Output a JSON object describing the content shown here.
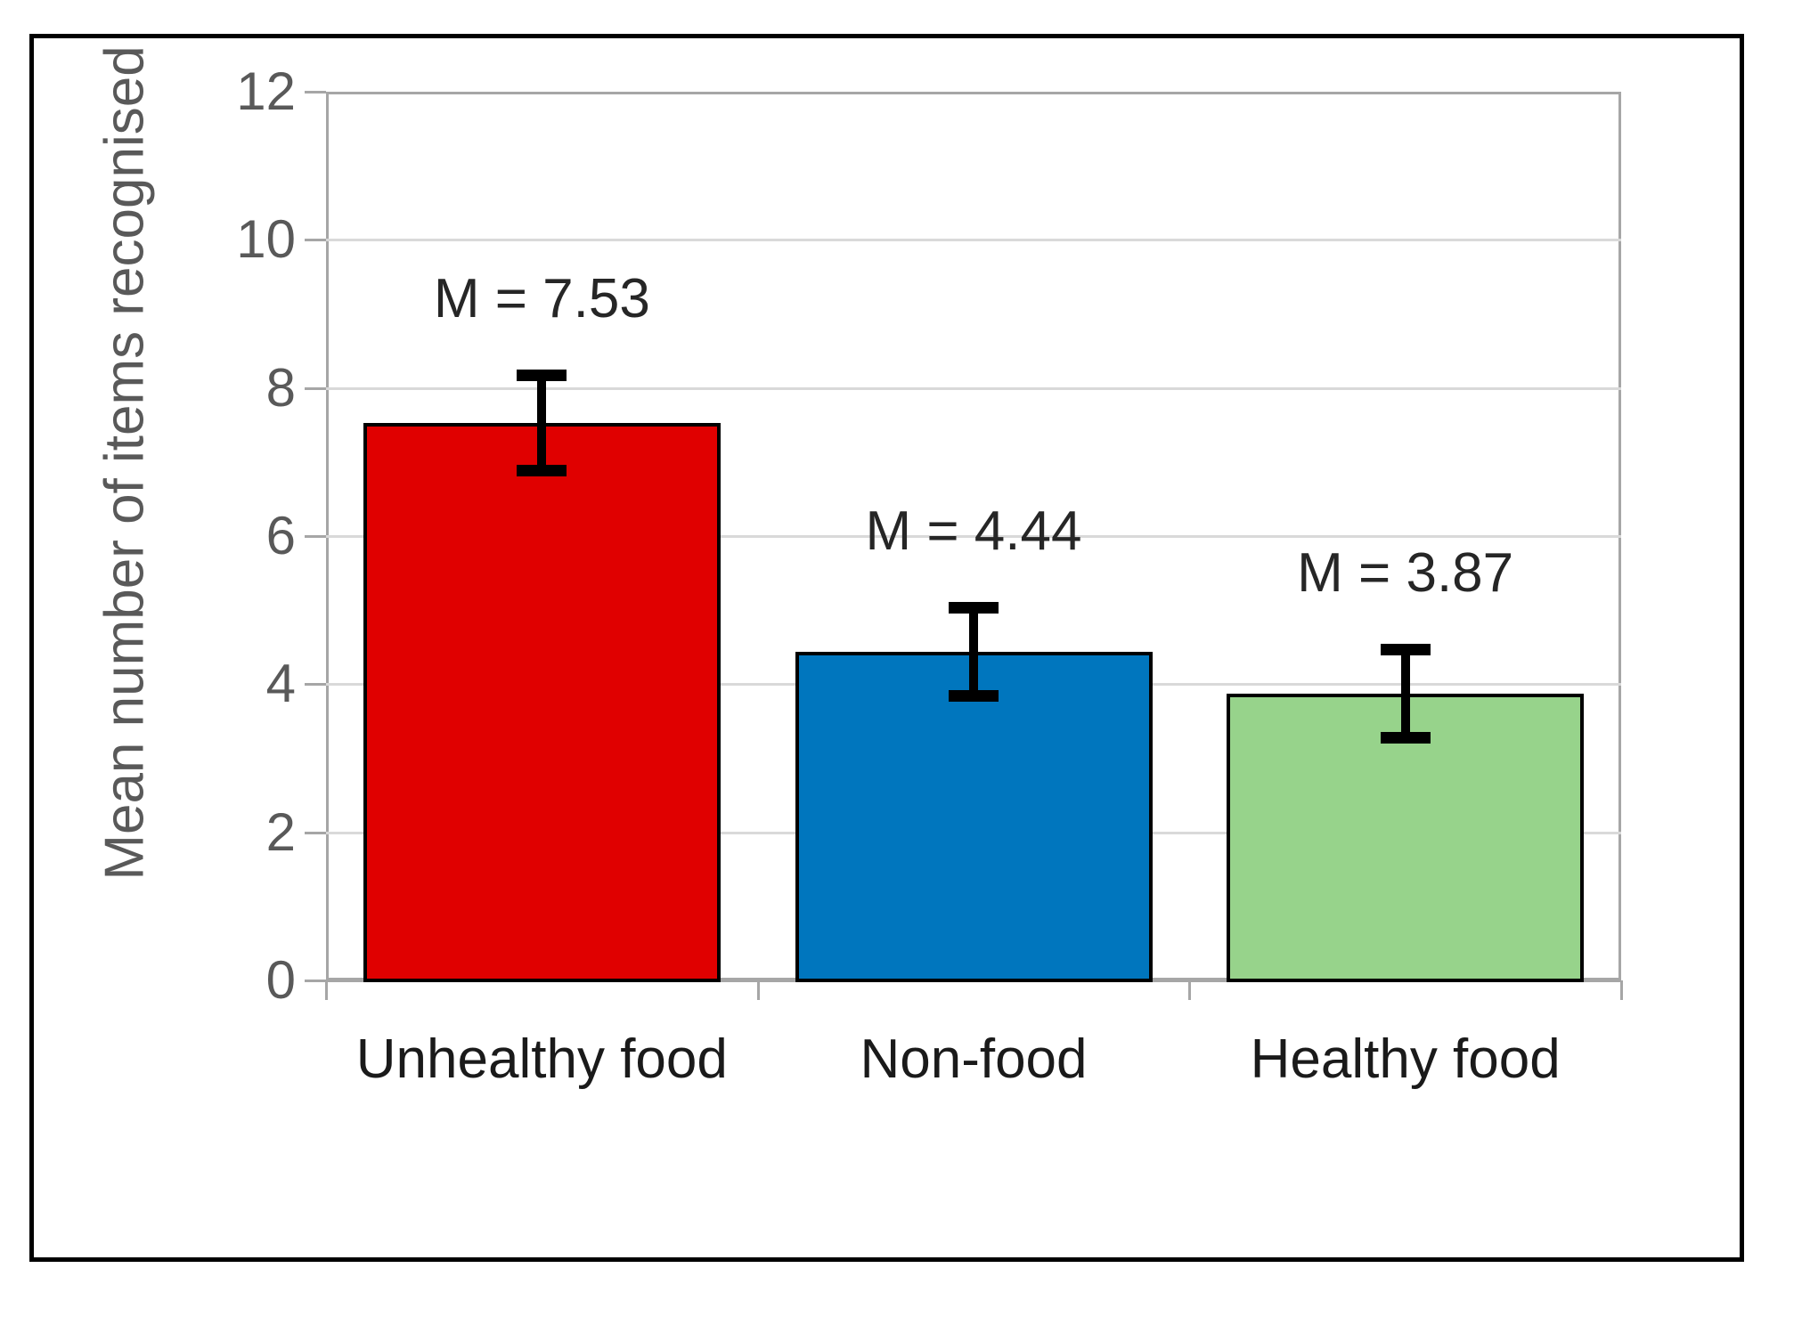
{
  "chart_data": {
    "type": "bar",
    "categories": [
      "Unhealthy food",
      "Non-food",
      "Healthy food"
    ],
    "values": [
      7.53,
      4.44,
      3.87
    ],
    "errors": [
      0.65,
      0.6,
      0.6
    ],
    "data_labels": [
      "M = 7.53",
      "M = 4.44",
      "M = 3.87"
    ],
    "bar_colors": [
      "#e00000",
      "#0076be",
      "#97d38b"
    ],
    "title": "",
    "xlabel": "",
    "ylabel": "Mean number of items recognised",
    "ylim": [
      0,
      12
    ],
    "yticks": [
      "0",
      "2",
      "4",
      "6",
      "8",
      "10",
      "12"
    ],
    "grid": "horizontal gridlines at every 2 units",
    "legend": "none",
    "colors": {
      "axis": "#a6a6a6",
      "gridline": "#d9d9d9",
      "tick_label": "#595959",
      "category_label": "#1a1a1a",
      "data_label": "#262626",
      "error_bar": "#000000",
      "bar_outline": "#000000",
      "outer_border": "#000000",
      "background": "#ffffff"
    }
  }
}
